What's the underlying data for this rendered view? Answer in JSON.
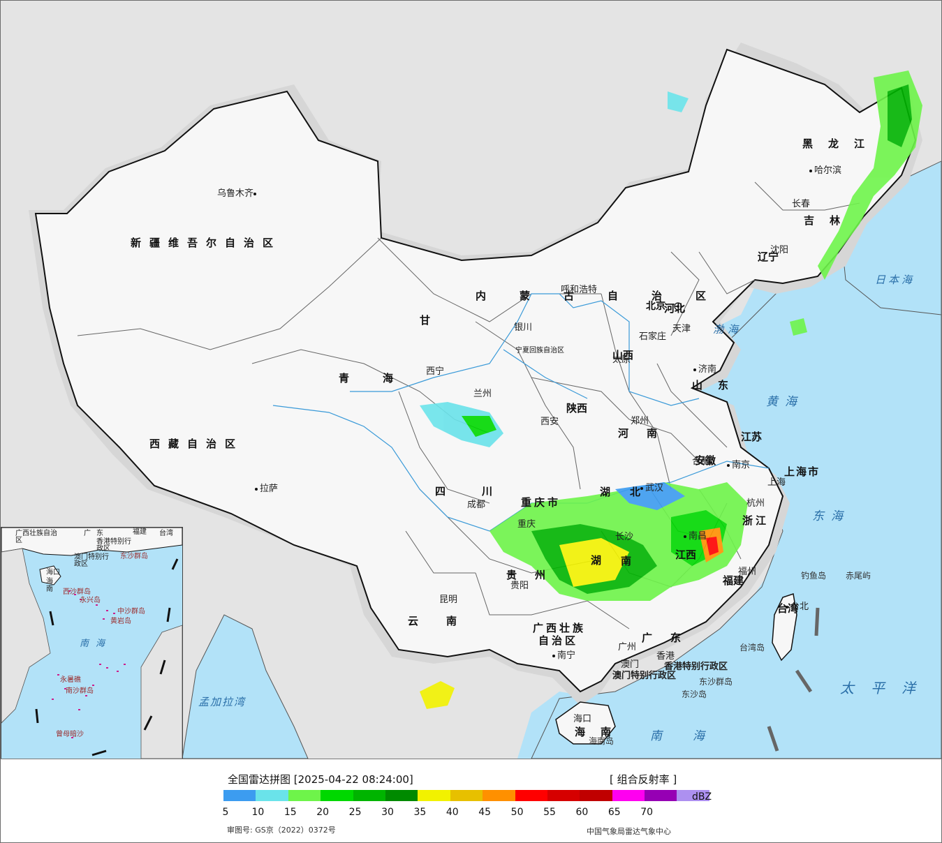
{
  "map": {
    "provinces": [
      {
        "name": "新疆维吾尔自治区",
        "key": "xinjiang"
      },
      {
        "name": "西藏自治区",
        "key": "xizang"
      },
      {
        "name": "青海",
        "key": "qinghai"
      },
      {
        "name": "甘",
        "key": "gansu1"
      },
      {
        "name": "四川",
        "key": "sichuan"
      },
      {
        "name": "云南",
        "key": "yunnan"
      },
      {
        "name": "贵州",
        "key": "guizhou"
      },
      {
        "name": "广西壮族",
        "key": "guangxi1"
      },
      {
        "name": "自治区",
        "key": "guangxi2"
      },
      {
        "name": "广东",
        "key": "guangdong"
      },
      {
        "name": "海南",
        "key": "hainan"
      },
      {
        "name": "湖",
        "key": "hunan1"
      },
      {
        "name": "南",
        "key": "hunan2"
      },
      {
        "name": "湖",
        "key": "hubei1"
      },
      {
        "name": "北",
        "key": "hubei2"
      },
      {
        "name": "河南",
        "key": "henan"
      },
      {
        "name": "山东",
        "key": "shandong"
      },
      {
        "name": "江苏",
        "key": "jiangsu"
      },
      {
        "name": "安徽",
        "key": "anhui"
      },
      {
        "name": "浙江",
        "key": "zhejiang"
      },
      {
        "name": "福建",
        "key": "fujian"
      },
      {
        "name": "江西",
        "key": "jiangxi"
      },
      {
        "name": "陕西",
        "key": "shaanxi"
      },
      {
        "name": "山西",
        "key": "shanxi"
      },
      {
        "name": "河北",
        "key": "hebei"
      },
      {
        "name": "内蒙古自治区",
        "key": "neimenggu"
      },
      {
        "name": "辽宁",
        "key": "liaoning"
      },
      {
        "name": "吉林",
        "key": "jilin"
      },
      {
        "name": "黑龙江",
        "key": "heilongjiang"
      },
      {
        "name": "重庆市",
        "key": "chongqing"
      },
      {
        "name": "台湾",
        "key": "taiwan"
      },
      {
        "name": "上海市",
        "key": "shanghai"
      },
      {
        "name": "宁夏回族自治区",
        "key": "ningxia"
      }
    ],
    "cities": {
      "urumqi": "乌鲁木齐",
      "lasa": "拉萨",
      "xining": "西宁",
      "lanzhou": "兰州",
      "yinchuan": "银川",
      "huhehaote": "呼和浩特",
      "beijing": "北京",
      "tianjin": "天津",
      "shijiazhuang": "石家庄",
      "taiyuan": "太原",
      "jinan": "济南",
      "zhengzhou": "郑州",
      "xian": "西安",
      "chengdu": "成都",
      "chongqing": "重庆",
      "wuhan": "武汉",
      "hefei": "合肥",
      "nanjing": "南京",
      "shanghai": "上海",
      "hangzhou": "杭州",
      "nanchang": "南昌",
      "changsha": "长沙",
      "guiyang": "贵阳",
      "kunming": "昆明",
      "nanning": "南宁",
      "guangzhou": "广州",
      "aomen": "澳门",
      "xianggang": "香港",
      "haikou": "海口",
      "fuzhou": "福州",
      "taibei": "台北",
      "shenyang": "沈阳",
      "changchun": "长春",
      "haerbin": "哈尔滨"
    },
    "special_regions": {
      "hk": "香港特别行政区",
      "macau": "澳门特别行政区"
    },
    "seas": {
      "bohai": "渤海",
      "huanghai": "黄海",
      "donghai": "东海",
      "nanhai": "南海",
      "taipingyang": "太平洋",
      "ribenhai": "日本海",
      "mengjialawan": "孟加拉湾"
    },
    "islands": {
      "diaoyu": "钓鱼岛",
      "chiwei": "赤尾屿",
      "dongsha": "东沙群岛",
      "dongsha_dao": "东沙岛",
      "taiwan_dao": "台湾岛",
      "hainan_dao": "海南岛"
    }
  },
  "inset": {
    "labels": {
      "guangxi": "广西壮族自治区",
      "guangdong": "广东",
      "fujian": "福建",
      "taiwan": "台湾",
      "hk": "香港特别行政区",
      "macau": "澳门特别行政区",
      "dongsha": "东沙群岛",
      "haikou": "海口",
      "hainan": "海南",
      "xisha": "西沙群岛",
      "yongxing": "永兴岛",
      "zhongsha": "中沙群岛",
      "huangyan": "黄岩岛",
      "nanhai": "南海",
      "yongshu": "永暑礁",
      "nansha": "南沙群岛",
      "zengmu": "曾母暗沙"
    }
  },
  "legend": {
    "title": "全国雷达拼图 [2025-04-22 08:24:00]",
    "product": "[ 组合反射率 ]",
    "unit": "dBZ",
    "review_no": "审图号: GS京（2022）0372号",
    "source": "中国气象局雷达气象中心",
    "scale": [
      {
        "value": "5",
        "color": "#3c9cf0"
      },
      {
        "value": "10",
        "color": "#6ae3ea"
      },
      {
        "value": "15",
        "color": "#6ef44a"
      },
      {
        "value": "20",
        "color": "#00d800"
      },
      {
        "value": "25",
        "color": "#00b400"
      },
      {
        "value": "30",
        "color": "#008a00"
      },
      {
        "value": "35",
        "color": "#f2f200"
      },
      {
        "value": "40",
        "color": "#e7c000"
      },
      {
        "value": "45",
        "color": "#ff9000"
      },
      {
        "value": "50",
        "color": "#ff0000"
      },
      {
        "value": "55",
        "color": "#d60000"
      },
      {
        "value": "60",
        "color": "#c00000"
      },
      {
        "value": "65",
        "color": "#ff00f0"
      },
      {
        "value": "70",
        "color": "#9600b4"
      },
      {
        "value": "",
        "color": "#ad90f0"
      }
    ]
  }
}
